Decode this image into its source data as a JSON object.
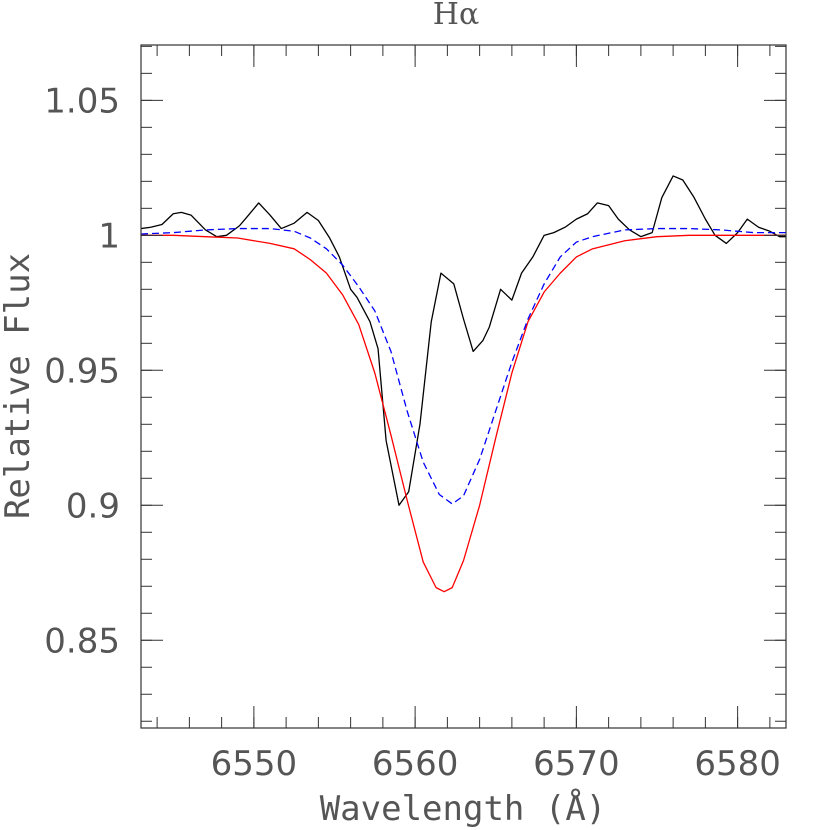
{
  "chart_data": {
    "type": "line",
    "title": "Hα",
    "xlabel": "Wavelength (Å)",
    "ylabel": "Relative Flux",
    "xlim": [
      6543,
      6583
    ],
    "ylim": [
      0.8175,
      1.0705
    ],
    "x_ticks": [
      {
        "value": 6550,
        "label": "6550"
      },
      {
        "value": 6560,
        "label": "6560"
      },
      {
        "value": 6570,
        "label": "6570"
      },
      {
        "value": 6580,
        "label": "6580"
      }
    ],
    "x_minor_step": 2,
    "y_ticks": [
      {
        "value": 0.85,
        "label": "0.85"
      },
      {
        "value": 0.9,
        "label": "0.9"
      },
      {
        "value": 0.95,
        "label": "0.95"
      },
      {
        "value": 1.0,
        "label": "1"
      },
      {
        "value": 1.05,
        "label": "1.05"
      }
    ],
    "y_minor_step": 0.01,
    "grid": false,
    "series": [
      {
        "color": "#000000",
        "dash": "solid",
        "x": [
          6543,
          6543.6,
          6544.3,
          6545,
          6545.5,
          6546.1,
          6547,
          6547.7,
          6548.3,
          6549.1,
          6549.6,
          6550.3,
          6551,
          6551.7,
          6552.5,
          6553.3,
          6554,
          6554.7,
          6555.3,
          6556,
          6556.4,
          6557.2,
          6557.7,
          6558.2,
          6559,
          6559.6,
          6560.3,
          6561,
          6561.6,
          6562.4,
          6563,
          6563.6,
          6564.2,
          6564.6,
          6565.3,
          6566,
          6566.6,
          6567.3,
          6568,
          6568.6,
          6569.3,
          6570,
          6570.7,
          6571.3,
          6572,
          6572.6,
          6573.3,
          6574,
          6574.7,
          6575.3,
          6576,
          6576.6,
          6577.3,
          6578,
          6578.6,
          6579.3,
          6580,
          6580.6,
          6581.3,
          6582,
          6582.6,
          6583
        ],
        "values": [
          1.0025,
          1.003,
          1.004,
          1.008,
          1.0085,
          1.0075,
          1.002,
          0.9995,
          1.0,
          1.0035,
          1.007,
          1.012,
          1.0075,
          1.0025,
          1.0045,
          1.0085,
          1.0055,
          0.999,
          0.992,
          0.98,
          0.977,
          0.968,
          0.958,
          0.924,
          0.9,
          0.905,
          0.93,
          0.968,
          0.986,
          0.982,
          0.969,
          0.957,
          0.961,
          0.966,
          0.98,
          0.976,
          0.986,
          0.992,
          1.0,
          1.001,
          1.003,
          1.006,
          1.008,
          1.012,
          1.011,
          1.006,
          1.002,
          0.9995,
          1.001,
          1.014,
          1.022,
          1.0205,
          1.014,
          1.006,
          1.0,
          0.997,
          1.001,
          1.006,
          1.003,
          1.0015,
          0.9995,
          0.9995
        ]
      },
      {
        "color": "#ff0000",
        "dash": "solid",
        "x": [
          6543,
          6545,
          6547,
          6549,
          6551,
          6552.5,
          6553.5,
          6554.5,
          6555.5,
          6556.5,
          6557.5,
          6558.5,
          6559.5,
          6560.5,
          6561.3,
          6561.8,
          6562.3,
          6563,
          6564,
          6565,
          6566,
          6567,
          6568,
          6569,
          6570,
          6571,
          6573,
          6575,
          6577,
          6579,
          6581,
          6583
        ],
        "values": [
          1.0,
          1.0,
          0.9995,
          0.999,
          0.997,
          0.995,
          0.991,
          0.986,
          0.978,
          0.967,
          0.949,
          0.926,
          0.902,
          0.879,
          0.8695,
          0.868,
          0.8695,
          0.8795,
          0.9,
          0.925,
          0.949,
          0.968,
          0.979,
          0.986,
          0.992,
          0.995,
          0.998,
          0.9995,
          1.0,
          1.0,
          1.0,
          1.0
        ]
      },
      {
        "color": "#0000ff",
        "dash": "dashed",
        "x": [
          6543,
          6545,
          6547,
          6549,
          6551,
          6552.5,
          6553.5,
          6554.5,
          6555.5,
          6556.5,
          6557.5,
          6558.5,
          6559.5,
          6560.5,
          6561.5,
          6562.3,
          6563,
          6564,
          6565,
          6566,
          6567,
          6568,
          6569,
          6570,
          6571,
          6573,
          6575,
          6577,
          6579,
          6581,
          6583
        ],
        "values": [
          1.0005,
          1.001,
          1.002,
          1.0025,
          1.0025,
          1.0015,
          0.999,
          0.995,
          0.989,
          0.981,
          0.972,
          0.957,
          0.935,
          0.916,
          0.904,
          0.9005,
          0.9035,
          0.917,
          0.935,
          0.953,
          0.969,
          0.982,
          0.992,
          0.9975,
          0.9995,
          1.002,
          1.0025,
          1.0025,
          1.002,
          1.001,
          1.001
        ]
      }
    ]
  }
}
